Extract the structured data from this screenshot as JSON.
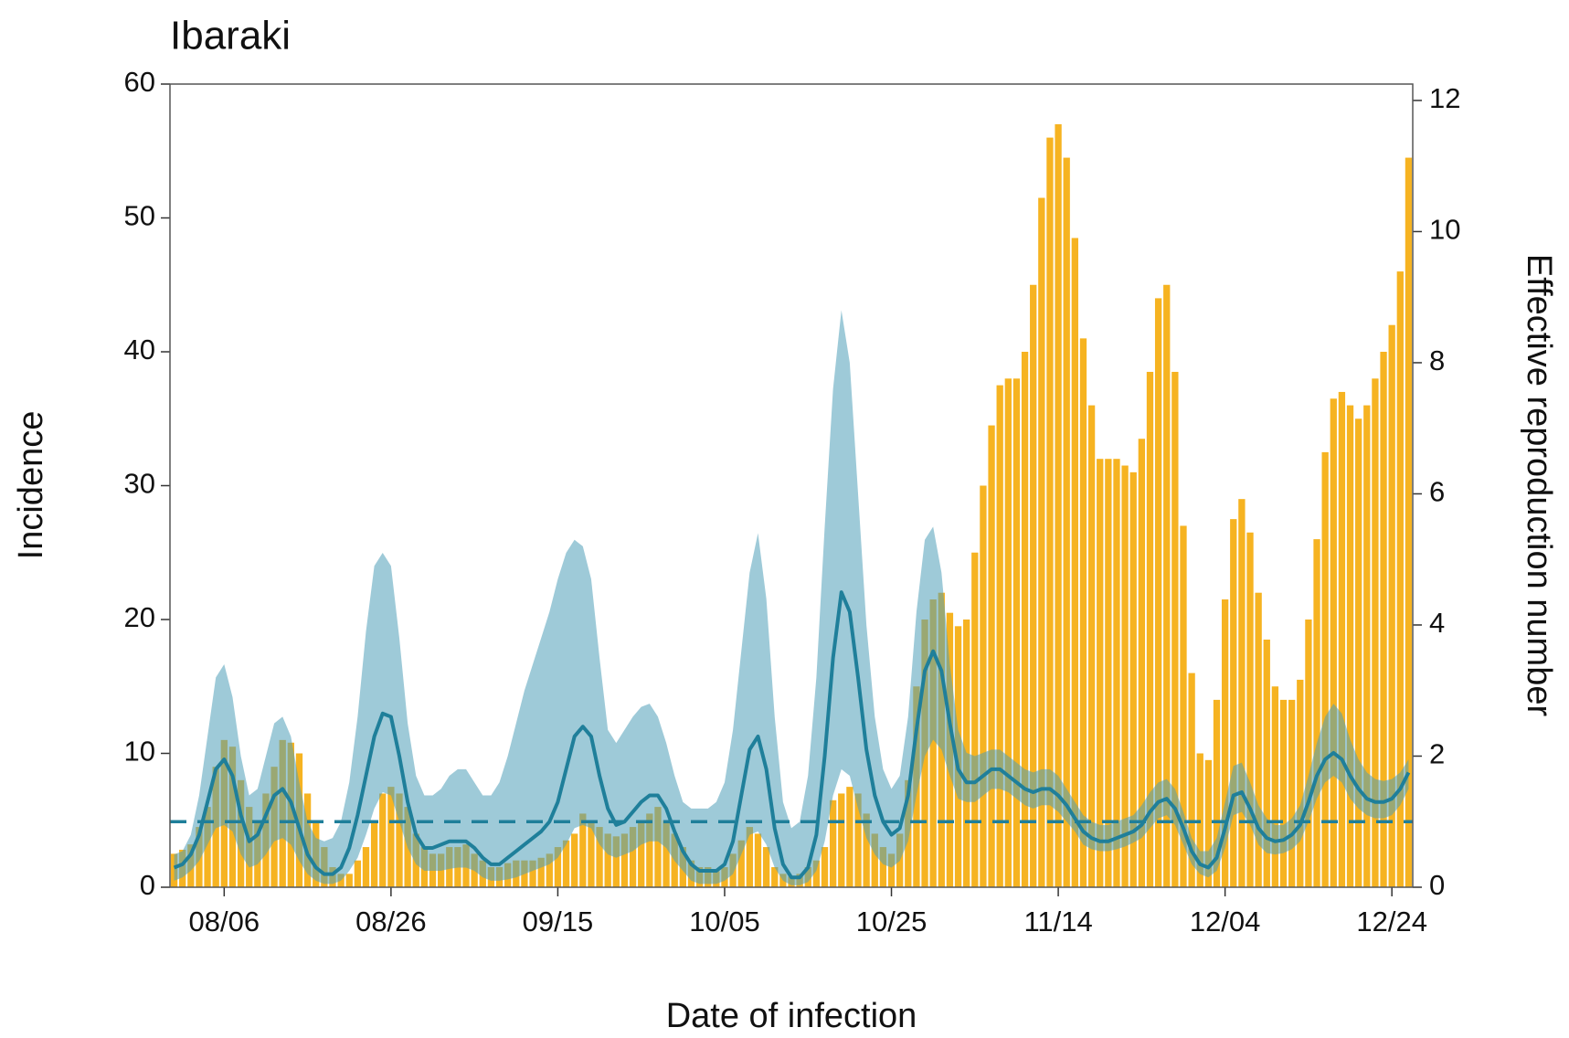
{
  "chart_data": {
    "type": "bar",
    "title": "Ibaraki",
    "xlabel": "Date of infection",
    "ylabel": "Incidence",
    "y2label": "Effective reproduction number",
    "categories": [
      "07/31",
      "08/01",
      "08/02",
      "08/03",
      "08/04",
      "08/05",
      "08/06",
      "08/07",
      "08/08",
      "08/09",
      "08/10",
      "08/11",
      "08/12",
      "08/13",
      "08/14",
      "08/15",
      "08/16",
      "08/17",
      "08/18",
      "08/19",
      "08/20",
      "08/21",
      "08/22",
      "08/23",
      "08/24",
      "08/25",
      "08/26",
      "08/27",
      "08/28",
      "08/29",
      "08/30",
      "08/31",
      "09/01",
      "09/02",
      "09/03",
      "09/04",
      "09/05",
      "09/06",
      "09/07",
      "09/08",
      "09/09",
      "09/10",
      "09/11",
      "09/12",
      "09/13",
      "09/14",
      "09/15",
      "09/16",
      "09/17",
      "09/18",
      "09/19",
      "09/20",
      "09/21",
      "09/22",
      "09/23",
      "09/24",
      "09/25",
      "09/26",
      "09/27",
      "09/28",
      "09/29",
      "09/30",
      "10/01",
      "10/02",
      "10/03",
      "10/04",
      "10/05",
      "10/06",
      "10/07",
      "10/08",
      "10/09",
      "10/10",
      "10/11",
      "10/12",
      "10/13",
      "10/14",
      "10/15",
      "10/16",
      "10/17",
      "10/18",
      "10/19",
      "10/20",
      "10/21",
      "10/22",
      "10/23",
      "10/24",
      "10/25",
      "10/26",
      "10/27",
      "10/28",
      "10/29",
      "10/30",
      "10/31",
      "11/01",
      "11/02",
      "11/03",
      "11/04",
      "11/05",
      "11/06",
      "11/07",
      "11/08",
      "11/09",
      "11/10",
      "11/11",
      "11/12",
      "11/13",
      "11/14",
      "11/15",
      "11/16",
      "11/17",
      "11/18",
      "11/19",
      "11/20",
      "11/21",
      "11/22",
      "11/23",
      "11/24",
      "11/25",
      "11/26",
      "11/27",
      "11/28",
      "11/29",
      "11/30",
      "12/01",
      "12/02",
      "12/03",
      "12/04",
      "12/05",
      "12/06",
      "12/07",
      "12/08",
      "12/09",
      "12/10",
      "12/11",
      "12/12",
      "12/13",
      "12/14",
      "12/15",
      "12/16",
      "12/17",
      "12/18",
      "12/19",
      "12/20",
      "12/21",
      "12/22",
      "12/23",
      "12/24",
      "12/25",
      "12/26"
    ],
    "xticks": [
      "08/06",
      "08/26",
      "09/15",
      "10/05",
      "10/25",
      "11/14",
      "12/04",
      "12/24"
    ],
    "ylim": [
      0,
      60
    ],
    "yticks": [
      0,
      10,
      20,
      30,
      40,
      50,
      60
    ],
    "y2lim": [
      0,
      12.25
    ],
    "y2ticks": [
      0,
      2,
      4,
      6,
      8,
      10,
      12
    ],
    "hline": {
      "value": 1,
      "axis": "y2",
      "dashed": true,
      "color": "#1f7f9a"
    },
    "series": [
      {
        "type": "bar",
        "color": "#f6b321",
        "values": [
          2.5,
          2.8,
          3.2,
          4.5,
          6,
          9,
          11,
          10.5,
          8,
          6,
          5,
          7,
          9,
          11,
          10.8,
          10,
          7,
          5,
          3,
          1.5,
          1,
          1,
          2,
          3,
          5,
          7,
          7.5,
          7,
          6,
          4,
          3,
          2.5,
          2.5,
          3,
          3,
          3.2,
          2.5,
          2,
          1.5,
          1.5,
          1.8,
          2,
          2,
          2,
          2.2,
          2.5,
          3,
          3.5,
          4,
          5.5,
          5,
          4.5,
          4,
          3.8,
          4,
          4.5,
          5,
          5.5,
          6,
          5,
          4,
          3,
          2,
          1.5,
          1.5,
          1.2,
          1.5,
          2.5,
          3.5,
          4.5,
          4,
          3,
          1.5,
          1,
          0.8,
          1,
          1.5,
          2,
          3,
          6.5,
          7,
          7.5,
          7,
          5.5,
          4,
          3,
          2.5,
          4,
          8,
          15,
          20,
          21.5,
          22,
          20.5,
          19.5,
          20,
          25,
          30,
          34.5,
          37.5,
          38,
          38,
          40,
          45,
          51.5,
          56,
          57,
          54.5,
          48.5,
          41,
          36,
          32,
          32,
          32,
          31.5,
          31,
          33.5,
          38.5,
          44,
          45,
          38.5,
          27,
          16,
          10,
          9.5,
          14,
          21.5,
          27.5,
          29,
          26.5,
          22,
          18.5,
          15,
          14,
          14,
          15.5,
          20,
          26,
          32.5,
          36.5,
          37,
          36,
          35,
          36,
          38,
          40,
          42,
          46,
          54.5
        ]
      },
      {
        "type": "line",
        "axis": "y2",
        "color": "#1f7f9a",
        "band_color": "#4f9fb8",
        "band_opacity": 0.55,
        "values": [
          0.3,
          0.35,
          0.5,
          0.8,
          1.3,
          1.8,
          1.95,
          1.7,
          1.1,
          0.7,
          0.8,
          1.1,
          1.4,
          1.5,
          1.3,
          0.9,
          0.5,
          0.3,
          0.2,
          0.2,
          0.3,
          0.6,
          1.1,
          1.7,
          2.3,
          2.65,
          2.6,
          2.0,
          1.3,
          0.8,
          0.6,
          0.6,
          0.65,
          0.7,
          0.7,
          0.7,
          0.6,
          0.45,
          0.35,
          0.35,
          0.45,
          0.55,
          0.65,
          0.75,
          0.85,
          1.0,
          1.3,
          1.8,
          2.3,
          2.45,
          2.3,
          1.7,
          1.2,
          0.95,
          1.0,
          1.15,
          1.3,
          1.4,
          1.4,
          1.2,
          0.85,
          0.55,
          0.35,
          0.25,
          0.25,
          0.25,
          0.35,
          0.7,
          1.4,
          2.1,
          2.3,
          1.8,
          0.9,
          0.35,
          0.15,
          0.15,
          0.3,
          0.8,
          2.0,
          3.5,
          4.5,
          4.2,
          3.2,
          2.1,
          1.4,
          1.0,
          0.8,
          0.9,
          1.4,
          2.4,
          3.3,
          3.6,
          3.3,
          2.5,
          1.8,
          1.6,
          1.6,
          1.7,
          1.8,
          1.8,
          1.7,
          1.6,
          1.5,
          1.45,
          1.5,
          1.5,
          1.4,
          1.25,
          1.05,
          0.85,
          0.75,
          0.7,
          0.7,
          0.75,
          0.8,
          0.85,
          0.95,
          1.15,
          1.3,
          1.35,
          1.2,
          0.9,
          0.55,
          0.35,
          0.3,
          0.45,
          0.9,
          1.4,
          1.45,
          1.2,
          0.9,
          0.75,
          0.7,
          0.72,
          0.8,
          0.95,
          1.3,
          1.7,
          1.95,
          2.05,
          1.95,
          1.7,
          1.5,
          1.35,
          1.3,
          1.3,
          1.35,
          1.5,
          1.75
        ],
        "upper": [
          0.5,
          0.55,
          0.8,
          1.4,
          2.3,
          3.2,
          3.4,
          2.9,
          2.0,
          1.4,
          1.5,
          2.0,
          2.5,
          2.6,
          2.3,
          1.6,
          1.0,
          0.75,
          0.7,
          0.75,
          1.0,
          1.6,
          2.6,
          3.9,
          4.9,
          5.1,
          4.9,
          3.8,
          2.5,
          1.7,
          1.4,
          1.4,
          1.5,
          1.7,
          1.8,
          1.8,
          1.6,
          1.4,
          1.4,
          1.6,
          2.0,
          2.5,
          3.0,
          3.4,
          3.8,
          4.2,
          4.7,
          5.1,
          5.3,
          5.2,
          4.7,
          3.5,
          2.4,
          2.2,
          2.4,
          2.6,
          2.75,
          2.8,
          2.6,
          2.2,
          1.7,
          1.3,
          1.2,
          1.2,
          1.2,
          1.3,
          1.6,
          2.4,
          3.6,
          4.8,
          5.4,
          4.4,
          2.6,
          1.3,
          0.9,
          1.0,
          1.7,
          3.2,
          5.5,
          7.6,
          8.8,
          8.0,
          6.0,
          4.0,
          2.6,
          1.8,
          1.5,
          1.7,
          2.6,
          4.2,
          5.3,
          5.5,
          4.8,
          3.4,
          2.4,
          2.05,
          2.0,
          2.05,
          2.1,
          2.1,
          2.0,
          1.9,
          1.8,
          1.75,
          1.8,
          1.8,
          1.7,
          1.5,
          1.3,
          1.1,
          1.0,
          0.95,
          0.95,
          1.0,
          1.05,
          1.1,
          1.25,
          1.45,
          1.6,
          1.65,
          1.5,
          1.15,
          0.75,
          0.55,
          0.55,
          0.75,
          1.3,
          1.85,
          1.9,
          1.6,
          1.25,
          1.05,
          0.95,
          0.95,
          1.05,
          1.25,
          1.7,
          2.2,
          2.6,
          2.8,
          2.65,
          2.25,
          1.95,
          1.75,
          1.65,
          1.62,
          1.65,
          1.75,
          1.95
        ],
        "lower": [
          0.1,
          0.15,
          0.25,
          0.4,
          0.65,
          0.9,
          0.95,
          0.85,
          0.5,
          0.3,
          0.35,
          0.5,
          0.7,
          0.75,
          0.65,
          0.4,
          0.2,
          0.1,
          0.05,
          0.05,
          0.1,
          0.25,
          0.45,
          0.8,
          1.2,
          1.45,
          1.4,
          1.0,
          0.6,
          0.35,
          0.25,
          0.25,
          0.25,
          0.28,
          0.3,
          0.3,
          0.25,
          0.15,
          0.1,
          0.1,
          0.12,
          0.15,
          0.2,
          0.25,
          0.3,
          0.35,
          0.45,
          0.65,
          0.9,
          0.95,
          0.9,
          0.65,
          0.5,
          0.45,
          0.5,
          0.55,
          0.65,
          0.7,
          0.7,
          0.6,
          0.4,
          0.25,
          0.1,
          0.05,
          0.05,
          0.05,
          0.1,
          0.2,
          0.5,
          0.8,
          0.85,
          0.65,
          0.3,
          0.1,
          0.03,
          0.03,
          0.08,
          0.25,
          0.7,
          1.4,
          1.8,
          1.7,
          1.2,
          0.75,
          0.5,
          0.35,
          0.3,
          0.4,
          0.7,
          1.4,
          2.0,
          2.25,
          2.1,
          1.7,
          1.35,
          1.3,
          1.3,
          1.4,
          1.5,
          1.5,
          1.45,
          1.35,
          1.25,
          1.2,
          1.25,
          1.25,
          1.15,
          1.0,
          0.85,
          0.65,
          0.58,
          0.55,
          0.55,
          0.58,
          0.62,
          0.68,
          0.75,
          0.9,
          1.05,
          1.1,
          0.95,
          0.65,
          0.35,
          0.2,
          0.15,
          0.25,
          0.6,
          1.1,
          1.15,
          0.95,
          0.65,
          0.52,
          0.5,
          0.52,
          0.58,
          0.7,
          1.0,
          1.35,
          1.6,
          1.7,
          1.6,
          1.35,
          1.2,
          1.1,
          1.05,
          1.05,
          1.1,
          1.25,
          1.5
        ]
      }
    ]
  }
}
